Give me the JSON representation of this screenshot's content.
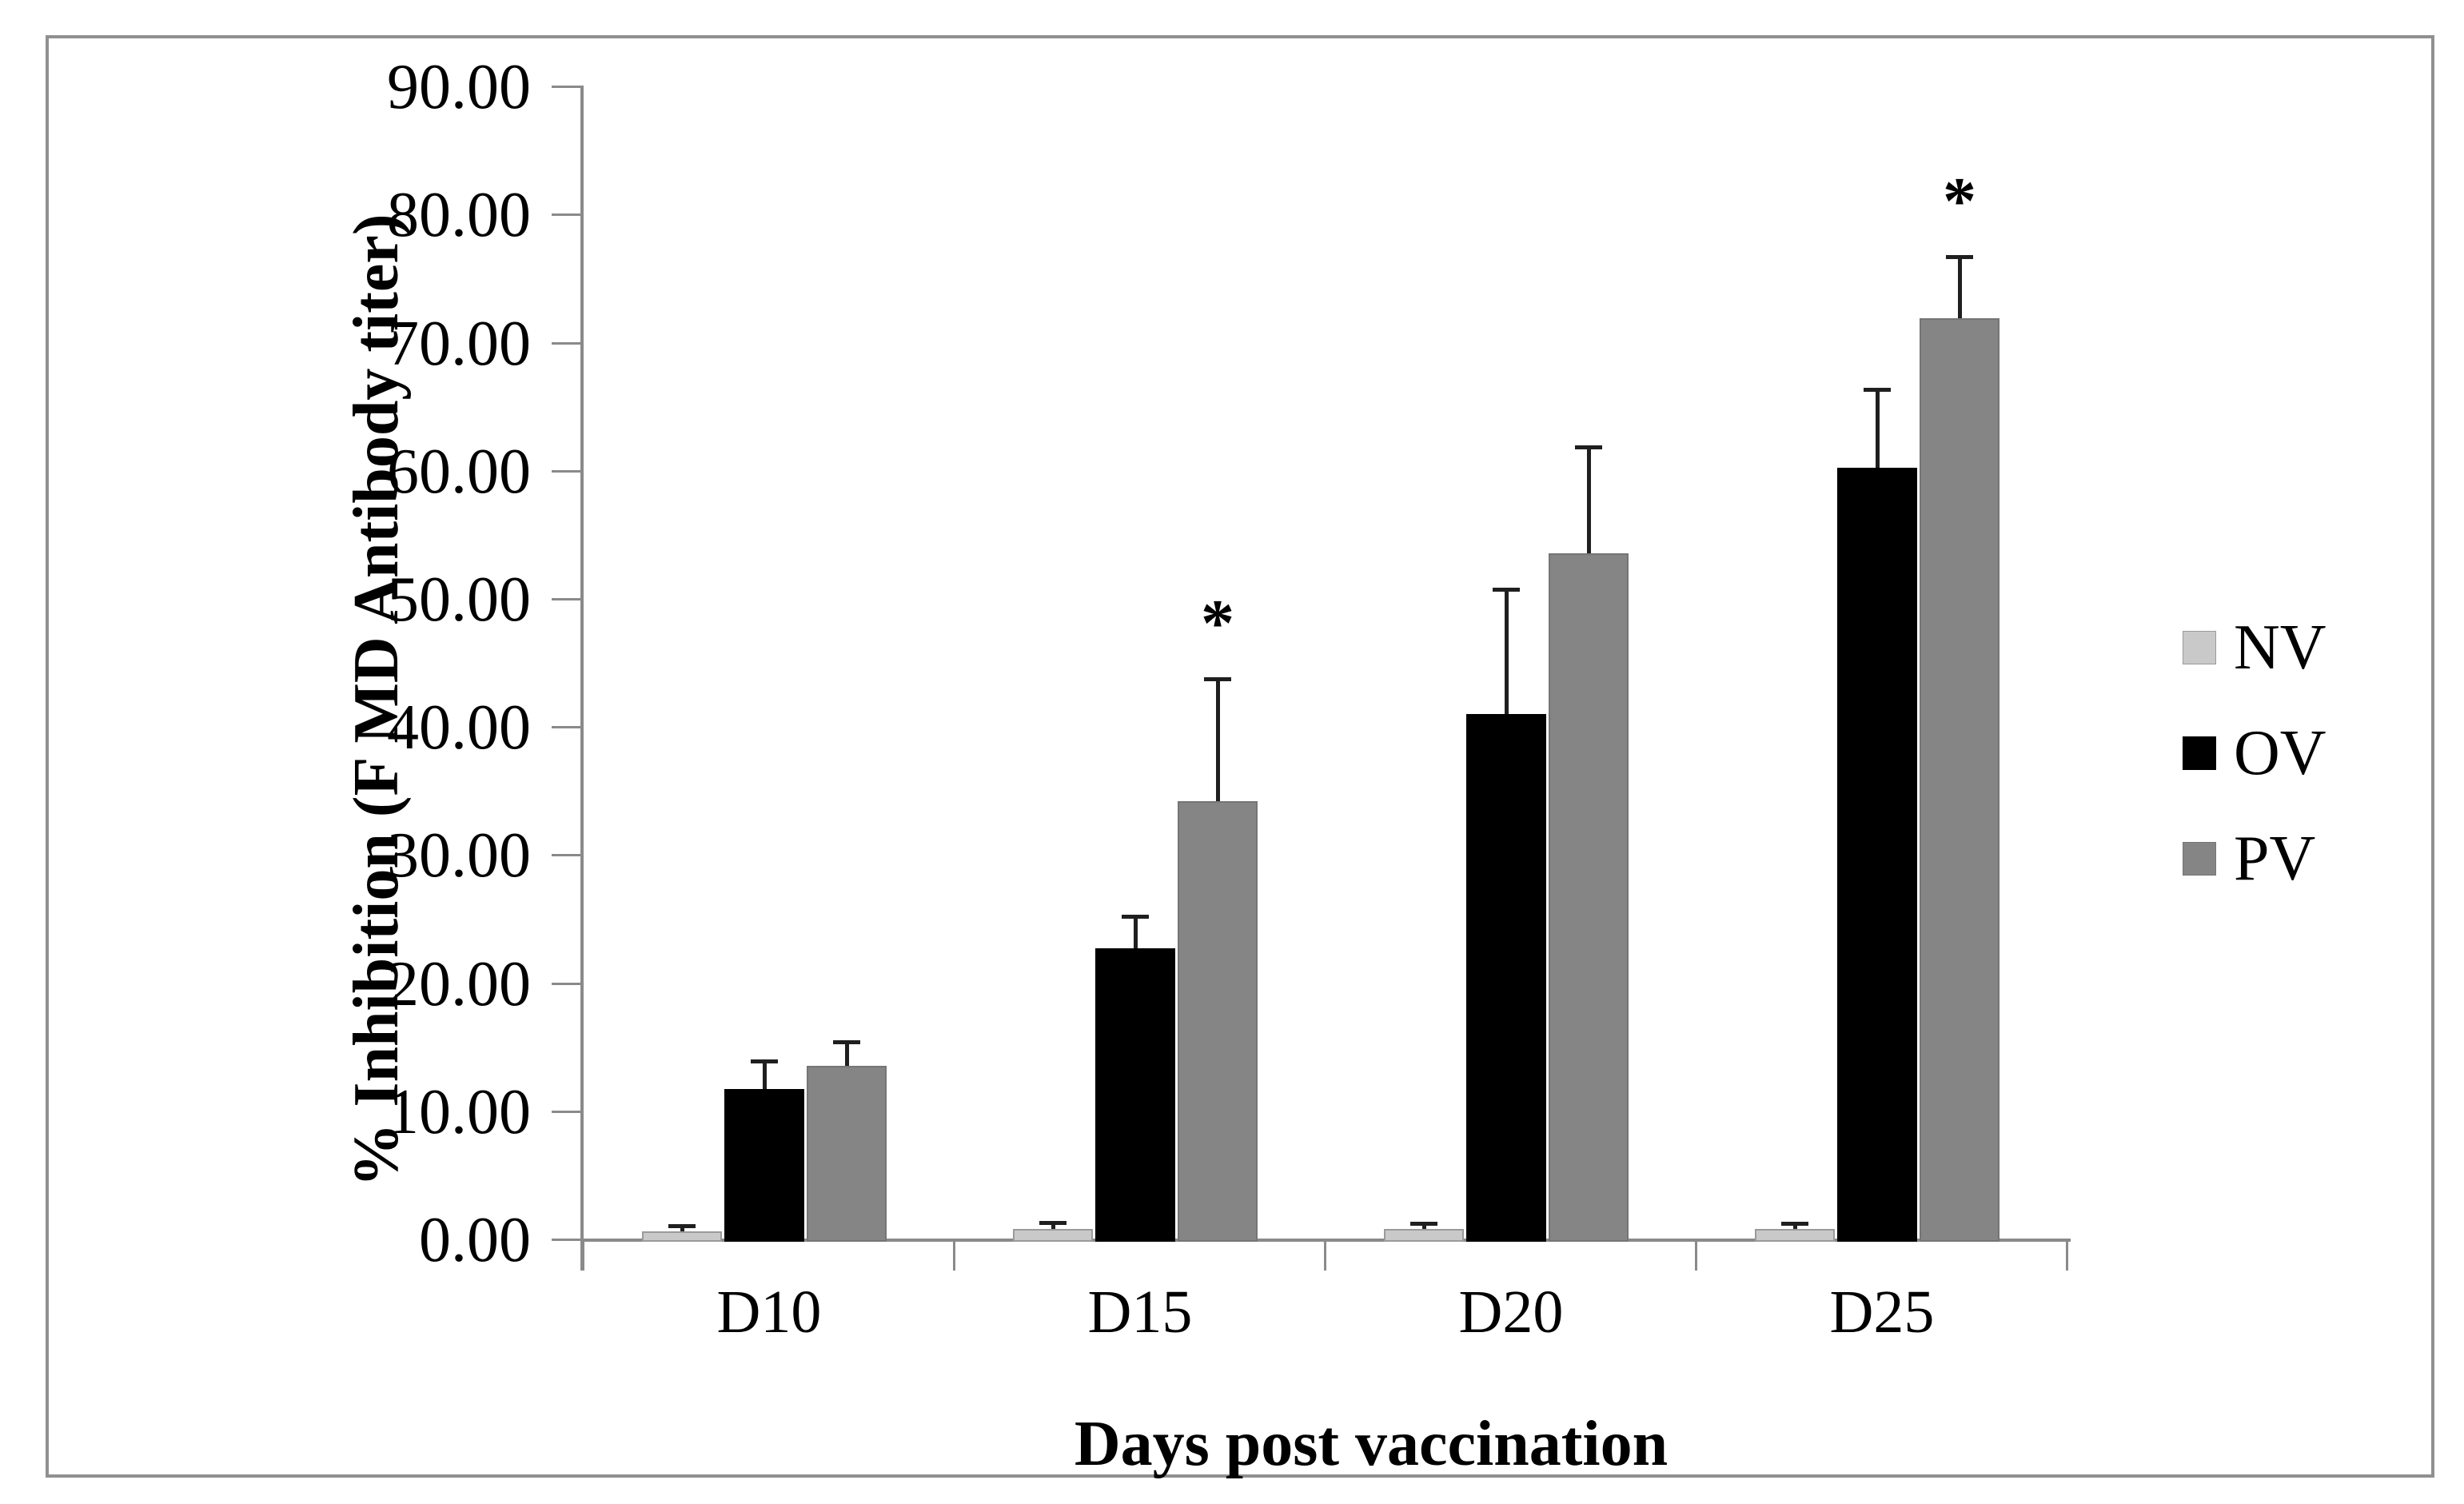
{
  "chart_data": {
    "type": "bar",
    "title": "",
    "xlabel": "Days post vaccination",
    "ylabel": "% Inhibition (F MD Antibody titer)",
    "categories": [
      "D10",
      "D15",
      "D20",
      "D25"
    ],
    "series": [
      {
        "name": "NV",
        "color": "#c9c9c9",
        "border": "#9a9a9a",
        "values": [
          0.7,
          0.9,
          0.85,
          0.85
        ],
        "errors": [
          0.4,
          0.5,
          0.45,
          0.45
        ]
      },
      {
        "name": "OV",
        "color": "#000000",
        "border": "#000000",
        "values": [
          11.8,
          22.8,
          41.1,
          60.3
        ],
        "errors": [
          2.2,
          2.5,
          9.7,
          6.1
        ]
      },
      {
        "name": "PV",
        "color": "#858585",
        "border": "#757575",
        "values": [
          13.6,
          34.3,
          53.6,
          72.0
        ],
        "errors": [
          1.9,
          9.5,
          8.3,
          4.8
        ]
      }
    ],
    "annotations": [
      {
        "text": "*",
        "category": "D15",
        "series": "PV"
      },
      {
        "text": "*",
        "category": "D25",
        "series": "PV"
      }
    ],
    "ylim": [
      0,
      90
    ],
    "ytick_step": 10,
    "ytick_labels": [
      "0.00",
      "10.00",
      "20.00",
      "30.00",
      "40.00",
      "50.00",
      "60.00",
      "70.00",
      "80.00",
      "90.00"
    ],
    "grid": false,
    "legend_position": "right",
    "error_bars": "plus-direction",
    "colors": {
      "axis": "#8a8a8a",
      "error_bar": "#1f1f1f",
      "frame_border": "#909090",
      "background": "#ffffff",
      "text": "#000000"
    }
  }
}
